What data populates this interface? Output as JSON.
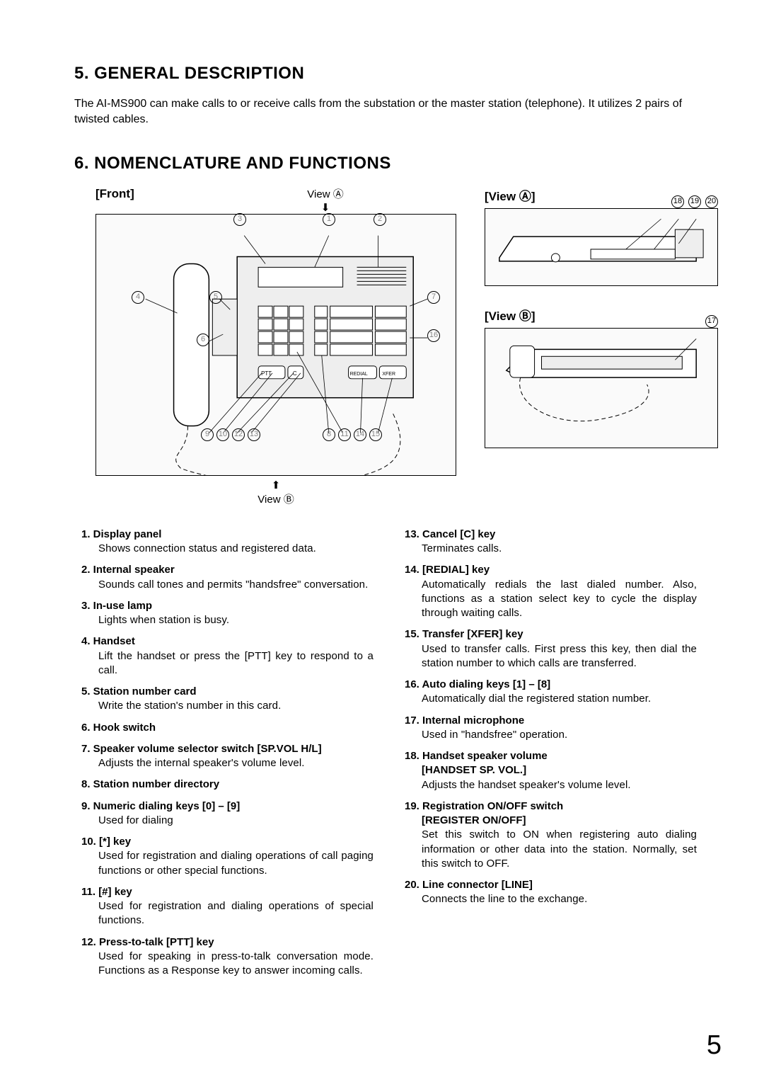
{
  "page_number": "5",
  "section5": {
    "heading": "5. GENERAL DESCRIPTION",
    "body": "The AI-MS900 can make calls to or receive calls from the substation or the master station (telephone). It utilizes 2 pairs of twisted cables."
  },
  "section6": {
    "heading": "6. NOMENCLATURE AND FUNCTIONS",
    "front_label": "[Front]",
    "view_a_top": "View Ⓐ",
    "view_b_bottom": "View Ⓑ",
    "view_a_label": "[View Ⓐ]",
    "view_b_label": "[View Ⓑ]",
    "callouts_top": [
      "③",
      "①",
      "②"
    ],
    "callouts_left": [
      "④",
      "⑤",
      "⑥"
    ],
    "callouts_right_top": [
      "⑦"
    ],
    "callouts_right_mid": [
      "⑯"
    ],
    "callouts_bottom": [
      "⑨",
      "⑩",
      "⑫",
      "⑬",
      "⑧",
      "⑪",
      "⑭",
      "⑮"
    ],
    "callouts_view_a": [
      "⑱",
      "⑲",
      "⑳"
    ],
    "callouts_view_b": [
      "⑰"
    ]
  },
  "items_col1": [
    {
      "n": "1.",
      "t": "Display panel",
      "d": "Shows connection status and registered data."
    },
    {
      "n": "2.",
      "t": "Internal speaker",
      "d": "Sounds call tones and permits \"handsfree\" conversation."
    },
    {
      "n": "3.",
      "t": "In-use lamp",
      "d": "Lights when station is busy."
    },
    {
      "n": "4.",
      "t": "Handset",
      "d": "Lift the handset or press the [PTT] key to respond to a call."
    },
    {
      "n": "5.",
      "t": "Station number card",
      "d": "Write the station's number in this card."
    },
    {
      "n": "6.",
      "t": "Hook switch",
      "d": ""
    },
    {
      "n": "7.",
      "t": "Speaker volume selector switch [SP.VOL H/L]",
      "d": "Adjusts the internal speaker's volume level."
    },
    {
      "n": "8.",
      "t": "Station number directory",
      "d": ""
    },
    {
      "n": "9.",
      "t": "Numeric dialing keys [0] – [9]",
      "d": "Used for dialing"
    },
    {
      "n": "10.",
      "t": "[*] key",
      "d": "Used for registration and dialing operations of call paging functions or other special functions."
    },
    {
      "n": "11.",
      "t": "[#] key",
      "d": "Used for registration and dialing operations of special functions."
    },
    {
      "n": "12.",
      "t": "Press-to-talk [PTT] key",
      "d": "Used for speaking in press-to-talk conversation mode. Functions as a Response key to answer incoming calls."
    }
  ],
  "items_col2": [
    {
      "n": "13.",
      "t": "Cancel [C] key",
      "d": "Terminates calls."
    },
    {
      "n": "14.",
      "t": "[REDIAL] key",
      "d": "Automatically redials the last dialed number. Also, functions as a station select key to cycle the display through waiting calls."
    },
    {
      "n": "15.",
      "t": "Transfer [XFER] key",
      "d": "Used to transfer calls. First press this key, then dial the station number to which calls are transferred."
    },
    {
      "n": "16.",
      "t": "Auto dialing keys [1] – [8]",
      "d": "Automatically dial the registered station number."
    },
    {
      "n": "17.",
      "t": "Internal microphone",
      "d": "Used in \"handsfree\" operation."
    },
    {
      "n": "18.",
      "t": "Handset speaker volume\n[HANDSET SP. VOL.]",
      "d": "Adjusts the handset speaker's volume level."
    },
    {
      "n": "19.",
      "t": "Registration ON/OFF switch\n[REGISTER ON/OFF]",
      "d": "Set this switch to ON when registering auto dialing information or other data into the station. Normally, set this switch to OFF."
    },
    {
      "n": "20.",
      "t": "Line connector [LINE]",
      "d": "Connects the line to the exchange."
    }
  ]
}
